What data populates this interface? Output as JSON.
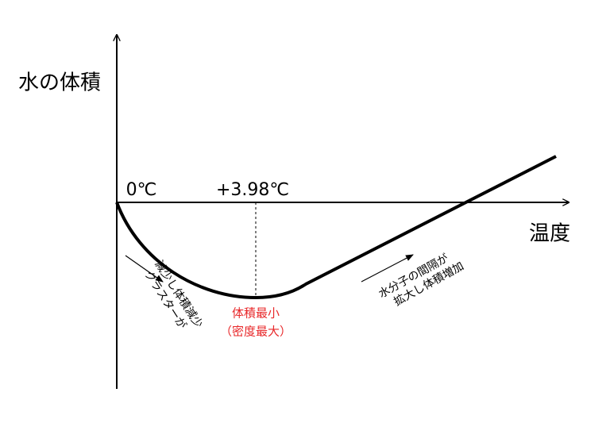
{
  "axes": {
    "y_label": "水の体積",
    "x_label": "温度"
  },
  "markers": {
    "zero": "0℃",
    "min_temp": "+3.98℃"
  },
  "minimum": {
    "line1": "体積最小",
    "line2": "（密度最大）"
  },
  "left_note": {
    "line1": "クラスターが",
    "line2": "減少し体積減少"
  },
  "right_note": {
    "line1": "水分子の間隔が",
    "line2": "拡大し体積増加"
  }
}
